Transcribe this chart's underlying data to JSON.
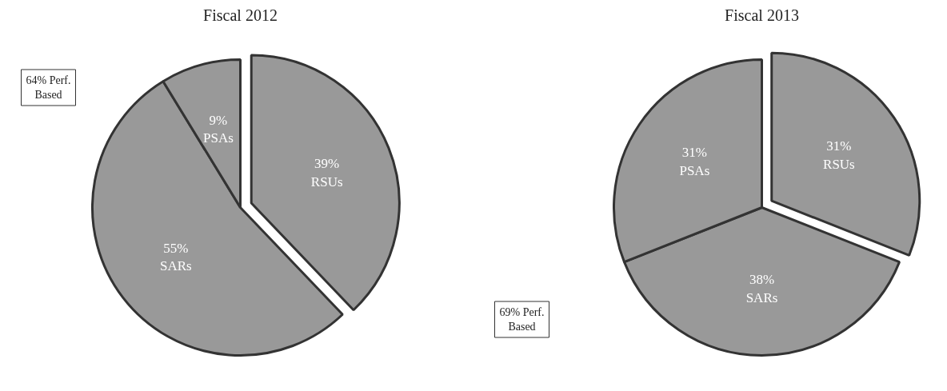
{
  "chart_data": [
    {
      "type": "pie",
      "title": "Fiscal 2012",
      "categories": [
        "RSUs",
        "SARs",
        "PSAs"
      ],
      "values": [
        39,
        55,
        9
      ],
      "value_labels": [
        "39%",
        "55%",
        "9%"
      ],
      "colors": [
        "#999999",
        "#999999",
        "#999999"
      ],
      "annotations": [
        "64% Perf. Based"
      ]
    },
    {
      "type": "pie",
      "title": "Fiscal 2013",
      "categories": [
        "RSUs",
        "SARs",
        "PSAs"
      ],
      "values": [
        31,
        38,
        31
      ],
      "value_labels": [
        "31%",
        "38%",
        "31%"
      ],
      "colors": [
        "#999999",
        "#999999",
        "#999999"
      ],
      "annotations": [
        "69% Perf. Based"
      ]
    }
  ]
}
